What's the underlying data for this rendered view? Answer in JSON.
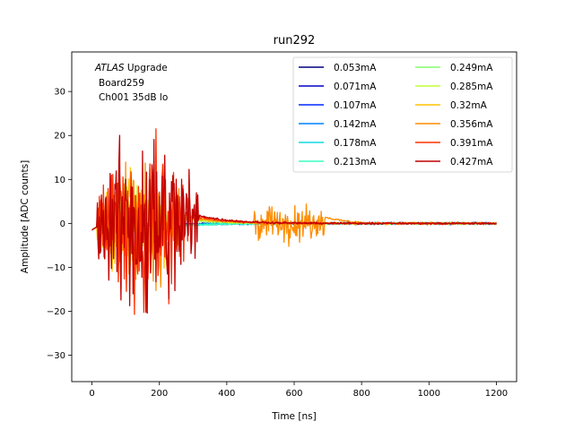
{
  "chart_data": {
    "type": "line",
    "title": "run292",
    "xlabel": "Time [ns]",
    "ylabel": "Amplitude [ADC counts]",
    "xlim": [
      -60,
      1260
    ],
    "ylim": [
      -36,
      39
    ],
    "xticks": [
      0,
      200,
      400,
      600,
      800,
      1000,
      1200
    ],
    "yticks": [
      -30,
      -20,
      -10,
      0,
      10,
      20,
      30
    ],
    "grid": false,
    "legend_position": "top-right",
    "legend_columns": 2,
    "annotation": {
      "line1_italic": "ATLAS",
      "line1_rest": " Upgrade",
      "line2": "Board259",
      "line3": "Ch001 35dB lo"
    },
    "series": [
      {
        "name": "0.053mA",
        "color": "#00007f"
      },
      {
        "name": "0.071mA",
        "color": "#0000c8"
      },
      {
        "name": "0.107mA",
        "color": "#0028ff"
      },
      {
        "name": "0.142mA",
        "color": "#0080ff"
      },
      {
        "name": "0.178mA",
        "color": "#10d8e6"
      },
      {
        "name": "0.213mA",
        "color": "#36ffc0"
      },
      {
        "name": "0.249mA",
        "color": "#86ff70"
      },
      {
        "name": "0.285mA",
        "color": "#c0ff36"
      },
      {
        "name": "0.32mA",
        "color": "#ffc400"
      },
      {
        "name": "0.356mA",
        "color": "#ff8c00"
      },
      {
        "name": "0.391mA",
        "color": "#ff3000"
      },
      {
        "name": "0.427mA",
        "color": "#c00000"
      }
    ]
  }
}
